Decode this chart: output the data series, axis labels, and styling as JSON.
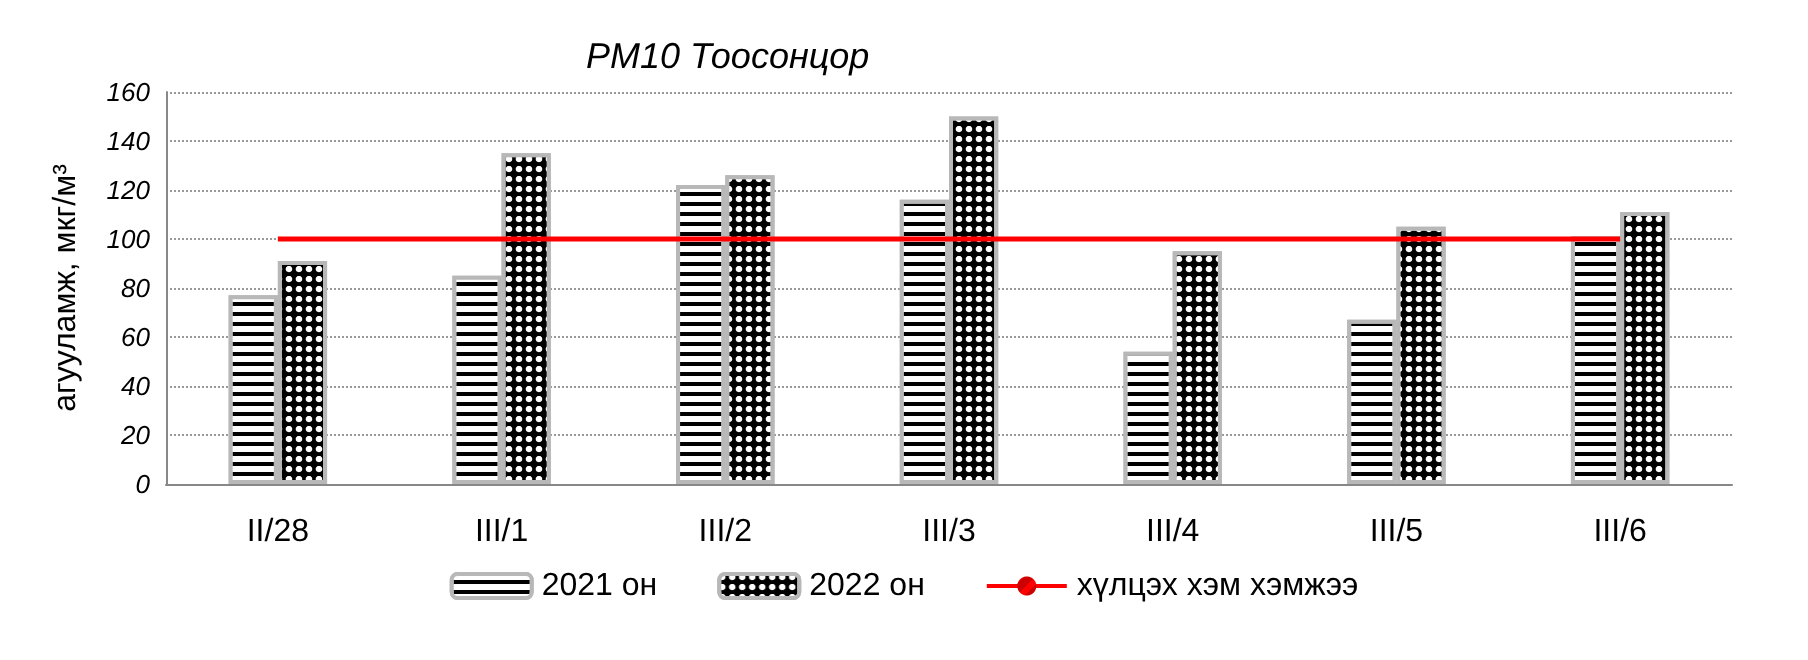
{
  "chart_data": {
    "type": "bar",
    "title": "PM10 Тоосонцор",
    "ylabel": "агууламж, мкг/м³",
    "categories": [
      "II/28",
      "III/1",
      "III/2",
      "III/3",
      "III/4",
      "III/5",
      "III/6"
    ],
    "series": [
      {
        "name": "2021 он",
        "color": "#000000",
        "values": [
          77,
          85,
          122,
          116,
          54,
          67,
          101
        ]
      },
      {
        "name": "2022 он",
        "color": "#000000",
        "values": [
          91,
          135,
          126,
          150,
          95,
          105,
          111
        ]
      },
      {
        "name": "хүлцэх хэм хэмжээ",
        "type": "line",
        "color": "#ff0000",
        "marker": "none",
        "values": [
          100,
          100,
          100,
          100,
          100,
          100,
          100
        ]
      }
    ],
    "ylim": [
      0,
      160
    ],
    "yticks": [
      0,
      20,
      40,
      60,
      80,
      100,
      120,
      140,
      160
    ],
    "grid": "y",
    "legend": "bottom"
  }
}
